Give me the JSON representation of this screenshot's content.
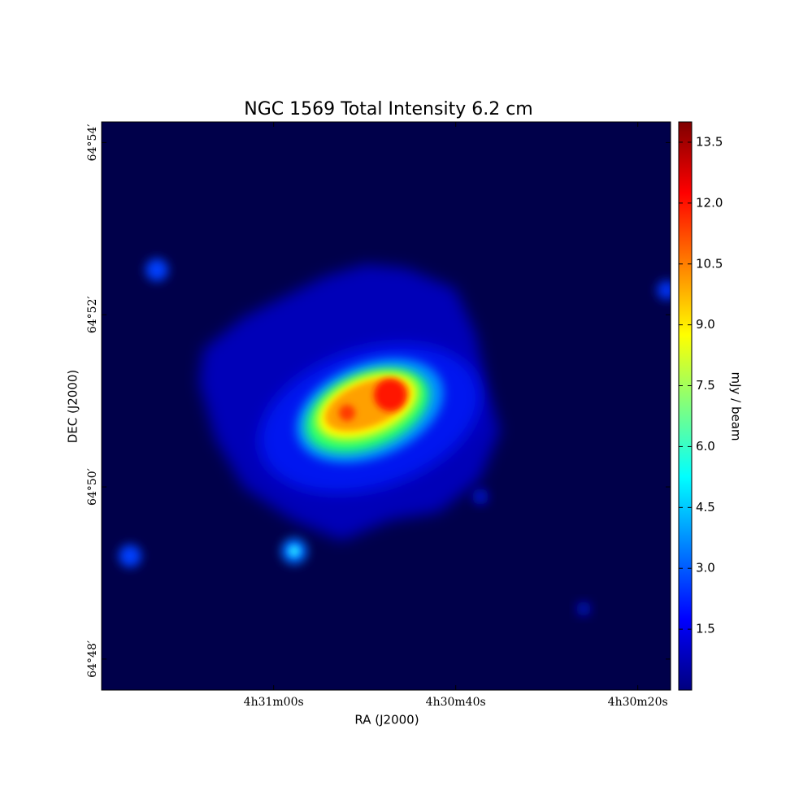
{
  "chart_data": {
    "type": "image",
    "title": "NGC 1569 Total Intensity 6.2 cm",
    "xlabel": "RA (J2000)",
    "ylabel": "DEC (J2000)",
    "xlim": [
      16278.9,
      16216.4
    ],
    "xticks": [
      {
        "value": 16260,
        "label": "4h31m00s"
      },
      {
        "value": 16240,
        "label": "4h30m40s"
      },
      {
        "value": 16220,
        "label": "4h30m20s"
      }
    ],
    "ylim": [
      3887.64,
      3894.24
    ],
    "yticks": [
      {
        "value": 3894,
        "label": "64°54′"
      },
      {
        "value": 3892,
        "label": "64°52′"
      },
      {
        "value": 3890,
        "label": "64°50′"
      },
      {
        "value": 3888,
        "label": "64°48′"
      }
    ],
    "colorbar": {
      "label": "mJy / beam",
      "clim": [
        0,
        14
      ],
      "colormap": "jet",
      "ticks": [
        1.5,
        {
          "value": 3,
          "label": "3.0"
        },
        4.5,
        {
          "value": 6,
          "label": "6.0"
        },
        7.5,
        {
          "value": 9,
          "label": "9.0"
        },
        10.5,
        {
          "value": 12,
          "label": "12.0"
        },
        13.5
      ]
    }
  }
}
